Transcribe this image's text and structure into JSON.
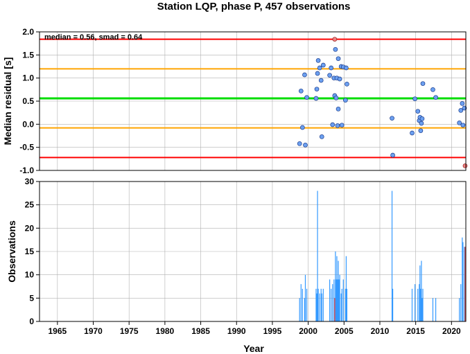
{
  "chart_data": [
    {
      "type": "scatter",
      "title": "Station LQP, phase P, 457 observations",
      "ylabel": "Median residual [s]",
      "annotation": "median = 0.56, smad = 0.64",
      "xlim": [
        1962.5,
        2022.0
      ],
      "ylim": [
        -1.0,
        2.0
      ],
      "yticks": [
        "2.0",
        "1.5",
        "1.0",
        "0.5",
        "0.0",
        "-0.5",
        "-1.0"
      ],
      "ytick_values": [
        2.0,
        1.5,
        1.0,
        0.5,
        0.0,
        -0.5,
        -1.0
      ],
      "grid": true,
      "reference_lines": [
        {
          "y": 1.84,
          "color": "#ff0000",
          "role": "upper outlier limit"
        },
        {
          "y": 1.2,
          "color": "#ffa500",
          "role": "upper smad"
        },
        {
          "y": 0.56,
          "color": "#00dd00",
          "role": "median"
        },
        {
          "y": -0.08,
          "color": "#ffa500",
          "role": "lower smad"
        },
        {
          "y": -0.72,
          "color": "#ff0000",
          "role": "lower outlier limit"
        }
      ],
      "point_color": "#6ca0f0",
      "outlier_color": "#f08080",
      "points": [
        {
          "x": 1998.8,
          "y": -0.42
        },
        {
          "x": 1999.0,
          "y": 0.72
        },
        {
          "x": 1999.2,
          "y": -0.07
        },
        {
          "x": 1999.5,
          "y": 1.07
        },
        {
          "x": 1999.6,
          "y": -0.45
        },
        {
          "x": 1999.8,
          "y": 0.58
        },
        {
          "x": 2001.1,
          "y": 0.56
        },
        {
          "x": 2001.2,
          "y": 0.76
        },
        {
          "x": 2001.3,
          "y": 1.1
        },
        {
          "x": 2001.4,
          "y": 1.38
        },
        {
          "x": 2001.6,
          "y": 1.22
        },
        {
          "x": 2001.8,
          "y": 0.95
        },
        {
          "x": 2001.9,
          "y": -0.27
        },
        {
          "x": 2002.1,
          "y": 1.28
        },
        {
          "x": 2003.0,
          "y": 1.06
        },
        {
          "x": 2003.2,
          "y": 1.22
        },
        {
          "x": 2003.4,
          "y": -0.01
        },
        {
          "x": 2003.6,
          "y": 1.0
        },
        {
          "x": 2003.7,
          "y": 0.62
        },
        {
          "x": 2003.8,
          "y": 1.62
        },
        {
          "x": 2003.9,
          "y": 0.57
        },
        {
          "x": 2004.0,
          "y": 1.0
        },
        {
          "x": 2004.1,
          "y": -0.03
        },
        {
          "x": 2004.2,
          "y": 1.42
        },
        {
          "x": 2004.2,
          "y": 0.33
        },
        {
          "x": 2004.4,
          "y": 0.98
        },
        {
          "x": 2004.6,
          "y": 1.25
        },
        {
          "x": 2004.7,
          "y": -0.02
        },
        {
          "x": 2004.9,
          "y": 1.24
        },
        {
          "x": 2005.2,
          "y": 0.52
        },
        {
          "x": 2005.3,
          "y": 1.22
        },
        {
          "x": 2005.4,
          "y": 0.87
        },
        {
          "x": 2011.7,
          "y": 0.13
        },
        {
          "x": 2011.8,
          "y": -0.67
        },
        {
          "x": 2014.5,
          "y": -0.19
        },
        {
          "x": 2014.9,
          "y": 0.55
        },
        {
          "x": 2015.3,
          "y": 0.28
        },
        {
          "x": 2015.5,
          "y": 0.08
        },
        {
          "x": 2015.6,
          "y": 0.15
        },
        {
          "x": 2015.7,
          "y": -0.14
        },
        {
          "x": 2015.8,
          "y": 0.02
        },
        {
          "x": 2015.9,
          "y": 0.12
        },
        {
          "x": 2016.0,
          "y": 0.88
        },
        {
          "x": 2017.4,
          "y": 0.75
        },
        {
          "x": 2017.8,
          "y": 0.58
        },
        {
          "x": 2021.1,
          "y": 0.03
        },
        {
          "x": 2021.3,
          "y": 0.3
        },
        {
          "x": 2021.5,
          "y": 0.45
        },
        {
          "x": 2021.6,
          "y": -0.02
        },
        {
          "x": 2021.8,
          "y": 0.35
        }
      ],
      "outlier_points": [
        {
          "x": 2003.7,
          "y": 1.84
        },
        {
          "x": 2021.9,
          "y": -0.9
        }
      ]
    },
    {
      "type": "bar",
      "xlabel": "Year",
      "ylabel": "Observations",
      "xlim": [
        1962.5,
        2022.0
      ],
      "ylim": [
        0,
        30
      ],
      "xticks": [
        "1965",
        "1970",
        "1975",
        "1980",
        "1985",
        "1990",
        "1995",
        "2000",
        "2005",
        "2010",
        "2015",
        "2020"
      ],
      "xtick_values": [
        1965,
        1970,
        1975,
        1980,
        1985,
        1990,
        1995,
        2000,
        2005,
        2010,
        2015,
        2020
      ],
      "yticks": [
        "30",
        "25",
        "20",
        "15",
        "10",
        "5",
        "0"
      ],
      "ytick_values": [
        30,
        25,
        20,
        15,
        10,
        5,
        0
      ],
      "grid": true,
      "bar_color": "#3399ff",
      "outlier_bar_color": "#e05050",
      "bars": [
        {
          "x": 1998.8,
          "y": 5
        },
        {
          "x": 1999.0,
          "y": 8
        },
        {
          "x": 1999.2,
          "y": 7
        },
        {
          "x": 1999.5,
          "y": 5
        },
        {
          "x": 1999.6,
          "y": 10
        },
        {
          "x": 1999.8,
          "y": 7
        },
        {
          "x": 2001.1,
          "y": 7
        },
        {
          "x": 2001.2,
          "y": 6
        },
        {
          "x": 2001.3,
          "y": 28
        },
        {
          "x": 2001.4,
          "y": 7
        },
        {
          "x": 2001.6,
          "y": 6
        },
        {
          "x": 2001.8,
          "y": 7
        },
        {
          "x": 2001.9,
          "y": 6
        },
        {
          "x": 2002.1,
          "y": 7
        },
        {
          "x": 2003.0,
          "y": 9
        },
        {
          "x": 2003.2,
          "y": 7
        },
        {
          "x": 2003.4,
          "y": 8
        },
        {
          "x": 2003.6,
          "y": 9
        },
        {
          "x": 2003.8,
          "y": 15
        },
        {
          "x": 2003.9,
          "y": 9
        },
        {
          "x": 2004.0,
          "y": 14
        },
        {
          "x": 2004.1,
          "y": 9
        },
        {
          "x": 2004.2,
          "y": 13
        },
        {
          "x": 2004.3,
          "y": 9
        },
        {
          "x": 2004.4,
          "y": 10
        },
        {
          "x": 2004.6,
          "y": 6
        },
        {
          "x": 2004.7,
          "y": 7
        },
        {
          "x": 2004.9,
          "y": 9
        },
        {
          "x": 2005.2,
          "y": 7
        },
        {
          "x": 2005.3,
          "y": 14
        },
        {
          "x": 2005.4,
          "y": 7
        },
        {
          "x": 2011.7,
          "y": 28
        },
        {
          "x": 2011.8,
          "y": 7
        },
        {
          "x": 2014.5,
          "y": 7
        },
        {
          "x": 2014.9,
          "y": 8
        },
        {
          "x": 2015.3,
          "y": 7
        },
        {
          "x": 2015.5,
          "y": 8
        },
        {
          "x": 2015.6,
          "y": 12
        },
        {
          "x": 2015.7,
          "y": 7
        },
        {
          "x": 2015.8,
          "y": 13
        },
        {
          "x": 2015.9,
          "y": 5
        },
        {
          "x": 2016.0,
          "y": 7
        },
        {
          "x": 2017.4,
          "y": 5
        },
        {
          "x": 2017.8,
          "y": 5
        },
        {
          "x": 2021.1,
          "y": 5
        },
        {
          "x": 2021.3,
          "y": 8
        },
        {
          "x": 2021.5,
          "y": 18
        },
        {
          "x": 2021.6,
          "y": 17
        },
        {
          "x": 2021.8,
          "y": 16
        }
      ],
      "outlier_bars": [
        {
          "x": 2003.7,
          "y": 5
        },
        {
          "x": 2021.9,
          "y": 16
        }
      ]
    }
  ]
}
